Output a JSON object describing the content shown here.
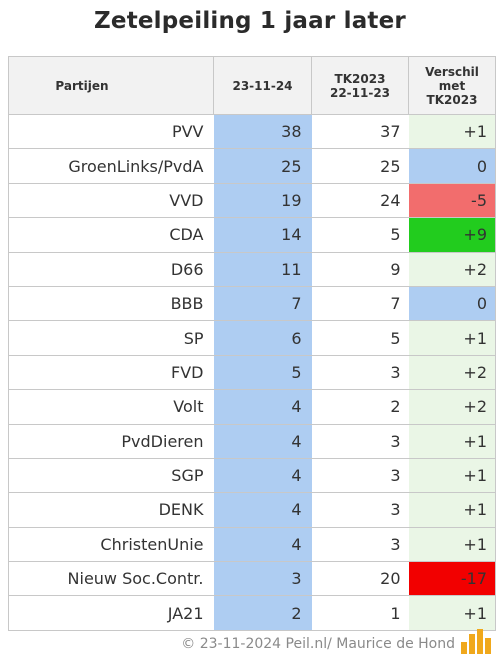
{
  "title": "Zetelpeiling 1 jaar later",
  "chart_data": {
    "type": "table",
    "title": "Zetelpeiling 1 jaar later",
    "columns": {
      "party": "Partijen",
      "now": "23-11-24",
      "tk_line1": "TK2023",
      "tk_line2": "22-11-23",
      "diff_line1": "Verschil",
      "diff_line2": "met",
      "diff_line3": "TK2023"
    },
    "rows": [
      {
        "party": "PVV",
        "now": 38,
        "tk": 37,
        "diff": "+1",
        "diff_color": "#eaf6e6"
      },
      {
        "party": "GroenLinks/PvdA",
        "now": 25,
        "tk": 25,
        "diff": "0",
        "diff_color": "#aecdf2"
      },
      {
        "party": "VVD",
        "now": 19,
        "tk": 24,
        "diff": "-5",
        "diff_color": "#f26d6d"
      },
      {
        "party": "CDA",
        "now": 14,
        "tk": 5,
        "diff": "+9",
        "diff_color": "#22cc1e"
      },
      {
        "party": "D66",
        "now": 11,
        "tk": 9,
        "diff": "+2",
        "diff_color": "#eaf6e6"
      },
      {
        "party": "BBB",
        "now": 7,
        "tk": 7,
        "diff": "0",
        "diff_color": "#aecdf2"
      },
      {
        "party": "SP",
        "now": 6,
        "tk": 5,
        "diff": "+1",
        "diff_color": "#eaf6e6"
      },
      {
        "party": "FVD",
        "now": 5,
        "tk": 3,
        "diff": "+2",
        "diff_color": "#eaf6e6"
      },
      {
        "party": "Volt",
        "now": 4,
        "tk": 2,
        "diff": "+2",
        "diff_color": "#eaf6e6"
      },
      {
        "party": "PvdDieren",
        "now": 4,
        "tk": 3,
        "diff": "+1",
        "diff_color": "#eaf6e6"
      },
      {
        "party": "SGP",
        "now": 4,
        "tk": 3,
        "diff": "+1",
        "diff_color": "#eaf6e6"
      },
      {
        "party": "DENK",
        "now": 4,
        "tk": 3,
        "diff": "+1",
        "diff_color": "#eaf6e6"
      },
      {
        "party": "ChristenUnie",
        "now": 4,
        "tk": 3,
        "diff": "+1",
        "diff_color": "#eaf6e6"
      },
      {
        "party": "Nieuw Soc.Contr.",
        "now": 3,
        "tk": 20,
        "diff": "-17",
        "diff_color": "#f20000"
      },
      {
        "party": "JA21",
        "now": 2,
        "tk": 1,
        "diff": "+1",
        "diff_color": "#eaf6e6"
      }
    ]
  },
  "footer": "© 23-11-2024 Peil.nl/ Maurice de Hond",
  "logo_text": "Peil.nl",
  "colors": {
    "now_column": "#aecdf2",
    "logo_orange": "#f0a81c"
  }
}
